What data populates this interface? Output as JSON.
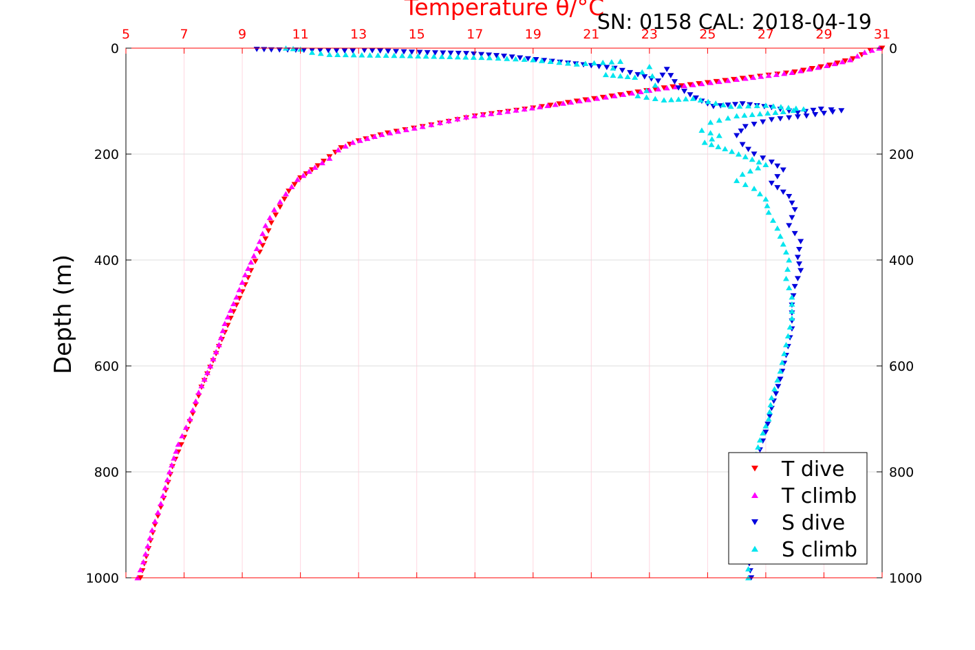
{
  "chart_data": {
    "type": "scatter",
    "title": "Temperature θ/°C",
    "annotation": "SN: 0158  CAL: 2018-04-19",
    "ylabel": "Depth (m)",
    "xlabel": "",
    "xlim": [
      5,
      31
    ],
    "ylim": [
      0,
      1000
    ],
    "y_reversed": true,
    "x_ticks": [
      "5",
      "7",
      "9",
      "11",
      "13",
      "15",
      "17",
      "19",
      "21",
      "23",
      "25",
      "27",
      "29",
      "31"
    ],
    "y_ticks": [
      "0",
      "200",
      "400",
      "600",
      "800",
      "1000"
    ],
    "grid": true,
    "legend_position": "bottom-right",
    "colors": {
      "temperature_axis": "#ff0000",
      "grid_x": "#ffd6e0",
      "grid_y": "#dddddd"
    },
    "series": [
      {
        "name": "T dive",
        "color": "#ff0000",
        "marker": "triangle-down",
        "points": [
          [
            31.0,
            0
          ],
          [
            30.6,
            5
          ],
          [
            30.0,
            20
          ],
          [
            29.2,
            32
          ],
          [
            28.0,
            45
          ],
          [
            26.5,
            55
          ],
          [
            25.0,
            65
          ],
          [
            23.5,
            75
          ],
          [
            22.0,
            88
          ],
          [
            20.5,
            100
          ],
          [
            19.0,
            113
          ],
          [
            17.0,
            128
          ],
          [
            15.5,
            145
          ],
          [
            14.0,
            160
          ],
          [
            13.0,
            175
          ],
          [
            12.4,
            188
          ],
          [
            12.0,
            205
          ],
          [
            11.6,
            222
          ],
          [
            11.0,
            245
          ],
          [
            10.6,
            270
          ],
          [
            10.3,
            300
          ],
          [
            10.0,
            330
          ],
          [
            9.8,
            360
          ],
          [
            9.6,
            385
          ],
          [
            9.3,
            420
          ],
          [
            9.0,
            460
          ],
          [
            8.6,
            510
          ],
          [
            8.3,
            550
          ],
          [
            8.0,
            590
          ],
          [
            7.6,
            640
          ],
          [
            7.3,
            690
          ],
          [
            7.0,
            735
          ],
          [
            6.6,
            790
          ],
          [
            6.3,
            850
          ],
          [
            6.0,
            900
          ],
          [
            5.7,
            960
          ],
          [
            5.5,
            1000
          ]
        ]
      },
      {
        "name": "T climb",
        "color": "#ff00ff",
        "marker": "triangle-up",
        "points": [
          [
            30.9,
            0
          ],
          [
            30.4,
            8
          ],
          [
            29.9,
            22
          ],
          [
            29.1,
            33
          ],
          [
            27.9,
            46
          ],
          [
            26.3,
            57
          ],
          [
            24.8,
            67
          ],
          [
            23.3,
            77
          ],
          [
            21.8,
            90
          ],
          [
            20.3,
            102
          ],
          [
            18.7,
            115
          ],
          [
            16.7,
            130
          ],
          [
            15.2,
            148
          ],
          [
            13.8,
            163
          ],
          [
            12.8,
            178
          ],
          [
            12.3,
            192
          ],
          [
            12.0,
            208
          ],
          [
            11.5,
            225
          ],
          [
            10.9,
            248
          ],
          [
            10.5,
            275
          ],
          [
            10.1,
            305
          ],
          [
            9.8,
            335
          ],
          [
            9.6,
            365
          ],
          [
            9.4,
            392
          ],
          [
            9.1,
            428
          ],
          [
            8.8,
            470
          ],
          [
            8.4,
            520
          ],
          [
            8.2,
            560
          ],
          [
            7.9,
            600
          ],
          [
            7.5,
            650
          ],
          [
            7.2,
            700
          ],
          [
            6.8,
            748
          ],
          [
            6.5,
            800
          ],
          [
            6.2,
            860
          ],
          [
            5.9,
            910
          ],
          [
            5.6,
            970
          ],
          [
            5.4,
            1000
          ]
        ]
      },
      {
        "name": "S dive",
        "color": "#0000dd",
        "marker": "triangle-down",
        "points": [
          [
            9.5,
            2
          ],
          [
            10.0,
            3
          ],
          [
            12.8,
            5
          ],
          [
            13.2,
            4
          ],
          [
            15.1,
            8
          ],
          [
            16.7,
            10
          ],
          [
            18.0,
            15
          ],
          [
            20.2,
            28
          ],
          [
            21.8,
            38
          ],
          [
            22.6,
            50
          ],
          [
            23.3,
            62
          ],
          [
            23.6,
            40
          ],
          [
            24.0,
            75
          ],
          [
            24.4,
            88
          ],
          [
            24.8,
            100
          ],
          [
            25.2,
            110
          ],
          [
            26.2,
            105
          ],
          [
            27.2,
            112
          ],
          [
            28.1,
            122
          ],
          [
            28.9,
            115
          ],
          [
            29.6,
            118
          ],
          [
            28.4,
            128
          ],
          [
            27.2,
            135
          ],
          [
            26.3,
            148
          ],
          [
            26.0,
            165
          ],
          [
            26.2,
            182
          ],
          [
            26.6,
            200
          ],
          [
            27.2,
            215
          ],
          [
            27.6,
            230
          ],
          [
            27.2,
            255
          ],
          [
            27.8,
            280
          ],
          [
            28.0,
            305
          ],
          [
            27.8,
            335
          ],
          [
            28.2,
            365
          ],
          [
            28.1,
            395
          ],
          [
            28.2,
            420
          ],
          [
            28.0,
            450
          ],
          [
            27.9,
            485
          ],
          [
            27.9,
            530
          ],
          [
            27.7,
            580
          ],
          [
            27.5,
            625
          ],
          [
            27.2,
            680
          ],
          [
            27.0,
            725
          ],
          [
            26.7,
            775
          ],
          [
            26.5,
            840
          ],
          [
            26.5,
            900
          ],
          [
            26.4,
            960
          ],
          [
            26.5,
            1000
          ]
        ]
      },
      {
        "name": "S climb",
        "color": "#00e5ee",
        "marker": "triangle-up",
        "points": [
          [
            10.5,
            0
          ],
          [
            11.0,
            2
          ],
          [
            11.4,
            8
          ],
          [
            12.0,
            12
          ],
          [
            14.5,
            14
          ],
          [
            17.5,
            18
          ],
          [
            19.0,
            22
          ],
          [
            20.5,
            30
          ],
          [
            22.0,
            25
          ],
          [
            21.5,
            50
          ],
          [
            22.5,
            55
          ],
          [
            23.0,
            35
          ],
          [
            23.2,
            70
          ],
          [
            22.6,
            90
          ],
          [
            23.5,
            98
          ],
          [
            24.5,
            95
          ],
          [
            25.8,
            110
          ],
          [
            27.0,
            108
          ],
          [
            28.3,
            115
          ],
          [
            27.6,
            120
          ],
          [
            26.0,
            128
          ],
          [
            25.1,
            140
          ],
          [
            24.8,
            155
          ],
          [
            25.4,
            165
          ],
          [
            24.9,
            178
          ],
          [
            25.6,
            190
          ],
          [
            26.3,
            205
          ],
          [
            27.0,
            220
          ],
          [
            26.2,
            238
          ],
          [
            26.0,
            250
          ],
          [
            26.6,
            265
          ],
          [
            27.0,
            285
          ],
          [
            27.1,
            310
          ],
          [
            27.4,
            340
          ],
          [
            27.6,
            370
          ],
          [
            27.8,
            400
          ],
          [
            27.7,
            435
          ],
          [
            27.9,
            470
          ],
          [
            27.9,
            510
          ],
          [
            27.7,
            560
          ],
          [
            27.5,
            610
          ],
          [
            27.2,
            660
          ],
          [
            27.1,
            700
          ],
          [
            26.8,
            740
          ],
          [
            26.6,
            780
          ],
          [
            26.5,
            830
          ],
          [
            26.4,
            890
          ],
          [
            26.4,
            950
          ],
          [
            26.4,
            1000
          ]
        ]
      }
    ]
  }
}
